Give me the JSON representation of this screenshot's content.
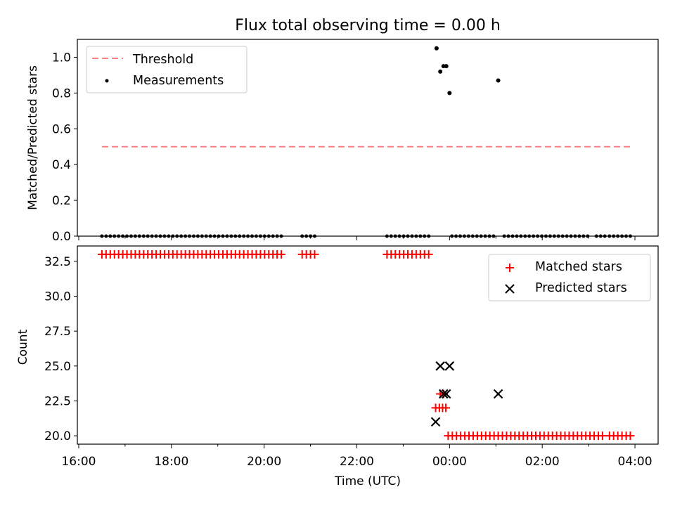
{
  "title": "Flux total observing time = 0.00 h",
  "chart_data": [
    {
      "type": "scatter",
      "ylabel": "Matched/Predicted stars",
      "ylim": [
        0,
        1.1
      ],
      "yticks": [
        "0.0",
        "0.2",
        "0.4",
        "0.6",
        "0.8",
        "1.0"
      ],
      "legend_position": "top-left",
      "threshold": {
        "name": "Threshold",
        "value": 0.5,
        "color": "#ff7f7f",
        "x_start": 16.5,
        "x_end": 27.9
      },
      "measurements": {
        "name": "Measurements",
        "color": "#000000",
        "points": [
          {
            "x": 23.72,
            "y": 1.05
          },
          {
            "x": 23.8,
            "y": 0.92
          },
          {
            "x": 23.87,
            "y": 0.95
          },
          {
            "x": 23.93,
            "y": 0.95
          },
          {
            "x": 24.0,
            "y": 0.8
          },
          {
            "x": 25.05,
            "y": 0.87
          }
        ],
        "zero_segments": [
          {
            "from": 16.5,
            "to": 20.42,
            "step": 0.09
          },
          {
            "from": 20.82,
            "to": 21.1,
            "step": 0.09
          },
          {
            "from": 22.65,
            "to": 23.62,
            "step": 0.09
          },
          {
            "from": 24.05,
            "to": 24.95,
            "step": 0.09
          },
          {
            "from": 25.18,
            "to": 27.0,
            "step": 0.09
          },
          {
            "from": 27.17,
            "to": 27.35,
            "step": 0.09
          },
          {
            "from": 27.45,
            "to": 27.9,
            "step": 0.09
          }
        ]
      }
    },
    {
      "type": "scatter",
      "xlabel": "Time (UTC)",
      "ylabel": "Count",
      "ylim": [
        19.4,
        33.6
      ],
      "yticks": [
        "20.0",
        "22.5",
        "25.0",
        "27.5",
        "30.0",
        "32.5"
      ],
      "xlim": [
        15.97,
        28.5
      ],
      "xticks": [
        "16:00",
        "18:00",
        "20:00",
        "22:00",
        "00:00",
        "02:00",
        "04:00"
      ],
      "legend_position": "top-right",
      "matched": {
        "name": "Matched stars",
        "color": "#ff0000",
        "segments": [
          {
            "from": 16.5,
            "to": 20.42,
            "step": 0.09,
            "y": 33
          },
          {
            "from": 20.82,
            "to": 21.1,
            "step": 0.09,
            "y": 33
          },
          {
            "from": 22.65,
            "to": 23.62,
            "step": 0.09,
            "y": 33
          },
          {
            "from": 23.97,
            "to": 27.32,
            "step": 0.09,
            "y": 20
          },
          {
            "from": 27.45,
            "to": 27.9,
            "step": 0.09,
            "y": 20
          }
        ],
        "points": [
          {
            "x": 23.7,
            "y": 22
          },
          {
            "x": 23.78,
            "y": 22
          },
          {
            "x": 23.85,
            "y": 22
          },
          {
            "x": 23.92,
            "y": 22
          },
          {
            "x": 23.8,
            "y": 23
          },
          {
            "x": 23.87,
            "y": 23
          }
        ]
      },
      "predicted": {
        "name": "Predicted stars",
        "color": "#000000",
        "points": [
          {
            "x": 23.7,
            "y": 21
          },
          {
            "x": 23.8,
            "y": 25
          },
          {
            "x": 23.87,
            "y": 23
          },
          {
            "x": 23.93,
            "y": 23
          },
          {
            "x": 24.0,
            "y": 25
          },
          {
            "x": 25.05,
            "y": 23
          }
        ]
      }
    }
  ]
}
